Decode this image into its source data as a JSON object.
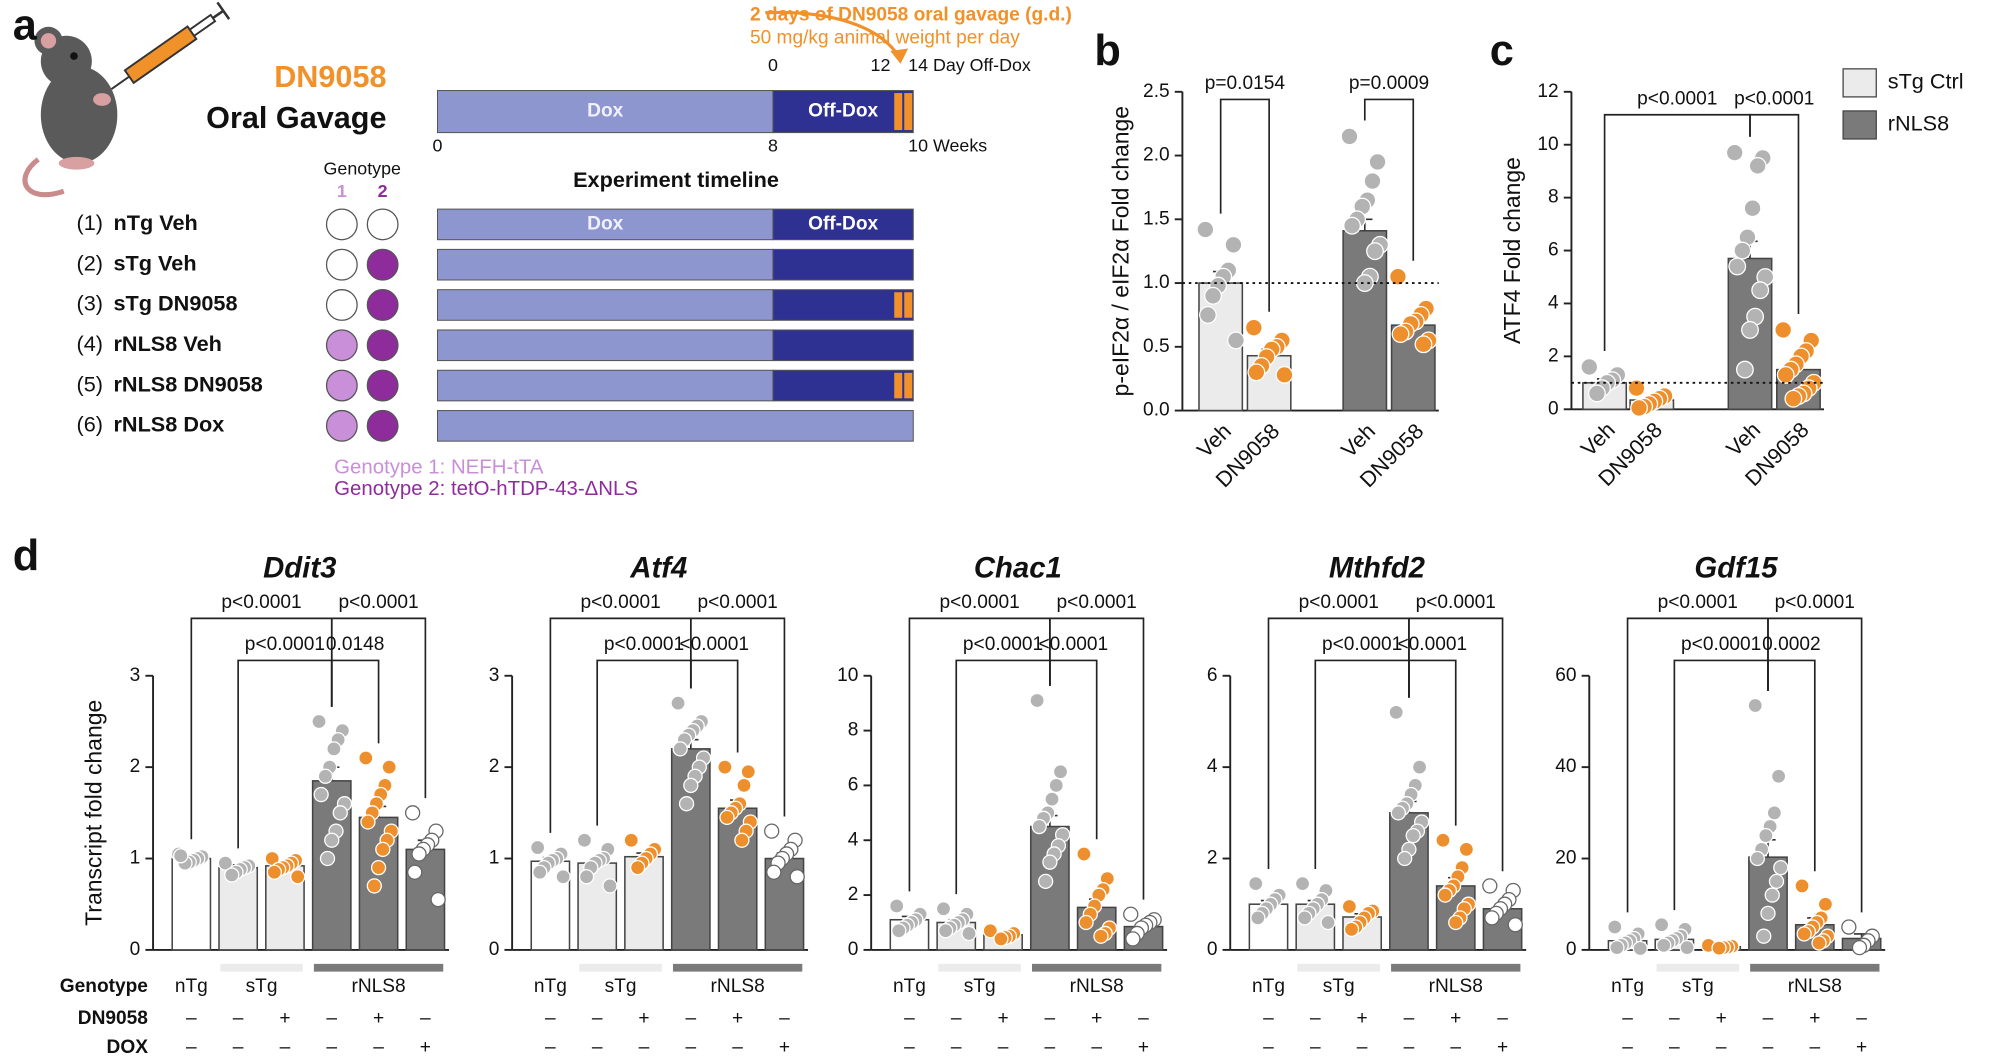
{
  "panel_labels": [
    "a",
    "b",
    "c",
    "d"
  ],
  "gavage": {
    "title": "2 days of DN9058 oral gavage (g.d.)",
    "subtitle": "50 mg/kg animal weight per day",
    "drug": "DN9058",
    "route": "Oral Gavage"
  },
  "timeline": {
    "title": "Experiment timeline",
    "labels": [
      "Dox",
      "Off-Dox"
    ],
    "week_ticks": [
      0,
      8,
      {
        "value": 10,
        "label": "10 Weeks"
      }
    ],
    "day_ticks": [
      0,
      12,
      {
        "value": 14,
        "label": "14 Day Off-Dox"
      }
    ]
  },
  "genotype": {
    "header": "Genotype",
    "columns": [
      1,
      2
    ],
    "colors": [
      "#c98fd8",
      "#8e2c9c"
    ],
    "legend": [
      "Genotype 1: NEFH-tTA",
      "Genotype 2: tetO-hTDP-43-ΔNLS"
    ]
  },
  "groups": [
    {
      "number": "(1)",
      "name": "nTg Veh",
      "genotype": [
        false,
        false
      ],
      "off_dox": true,
      "gavage": false,
      "labels": [
        "Dox",
        "Off-Dox"
      ]
    },
    {
      "number": "(2)",
      "name": "sTg Veh",
      "genotype": [
        false,
        true
      ],
      "off_dox": true,
      "gavage": false
    },
    {
      "number": "(3)",
      "name": "sTg DN9058",
      "genotype": [
        false,
        true
      ],
      "off_dox": true,
      "gavage": true
    },
    {
      "number": "(4)",
      "name": "rNLS8 Veh",
      "genotype": [
        true,
        true
      ],
      "off_dox": true,
      "gavage": false
    },
    {
      "number": "(5)",
      "name": "rNLS8 DN9058",
      "genotype": [
        true,
        true
      ],
      "off_dox": true,
      "gavage": true
    },
    {
      "number": "(6)",
      "name": "rNLS8 Dox",
      "genotype": [
        true,
        true
      ],
      "off_dox": false,
      "gavage": false
    }
  ],
  "chart_data": [
    {
      "type": "bar",
      "ylabel": "p-eIF2α / eIF2α Fold change",
      "categories": [
        "Veh",
        "DN9058",
        "Veh",
        "DN9058"
      ],
      "values": [
        1.0,
        0.43,
        1.41,
        0.67
      ],
      "errors": [
        0.09,
        0.05,
        0.09,
        0.04
      ],
      "colors": [
        "#ebebeb",
        "#ebebeb",
        "#7a7a7a",
        "#7a7a7a"
      ],
      "point_colors": [
        "#b3b3b3",
        "#ee8f2e",
        "#b3b3b3",
        "#ee8f2e"
      ],
      "points": [
        [
          1.42,
          1.3,
          1.1,
          1.05,
          0.98,
          0.9,
          0.75,
          0.55
        ],
        [
          0.65,
          0.55,
          0.5,
          0.48,
          0.42,
          0.35,
          0.3,
          0.28
        ],
        [
          2.15,
          1.95,
          1.8,
          1.65,
          1.6,
          1.5,
          1.45,
          1.3,
          1.25,
          1.05,
          1.0
        ],
        [
          1.05,
          0.8,
          0.75,
          0.7,
          0.68,
          0.62,
          0.6,
          0.55,
          0.52
        ]
      ],
      "ylim": [
        0,
        2.5
      ],
      "yticks": [
        {
          "value": 0,
          "label": "0.0"
        },
        0.5,
        {
          "value": 1,
          "label": "1.0"
        },
        1.5,
        {
          "value": 2,
          "label": "2.0"
        },
        2.5
      ],
      "reference_line": 1,
      "comparisons": [
        {
          "from": 0,
          "to": 1,
          "label": "p=0.0154"
        },
        {
          "from": 2,
          "to": 3,
          "label": "p=0.0009"
        }
      ]
    },
    {
      "type": "bar",
      "ylabel": "ATF4 Fold change",
      "categories": [
        "Veh",
        "DN9058",
        "Veh",
        "DN9058"
      ],
      "values": [
        1.0,
        0.35,
        5.7,
        1.5
      ],
      "errors": [
        0.15,
        0.1,
        0.65,
        0.25
      ],
      "colors": [
        "#ebebeb",
        "#ebebeb",
        "#7a7a7a",
        "#7a7a7a"
      ],
      "point_colors": [
        "#b3b3b3",
        "#ee8f2e",
        "#b3b3b3",
        "#ee8f2e"
      ],
      "points": [
        [
          1.6,
          1.3,
          1.1,
          1.0,
          0.8,
          0.6
        ],
        [
          0.8,
          0.5,
          0.4,
          0.3,
          0.2,
          0.1,
          0.05
        ],
        [
          9.7,
          9.5,
          9.2,
          7.6,
          6.5,
          6.0,
          5.4,
          5.0,
          4.5,
          3.5,
          3.0,
          1.5
        ],
        [
          3.0,
          2.6,
          2.2,
          2.0,
          1.7,
          1.5,
          1.3,
          1.0,
          0.8,
          0.6,
          0.5,
          0.4
        ]
      ],
      "ylim": [
        0,
        12
      ],
      "yticks": [
        0,
        2,
        4,
        6,
        8,
        10,
        12
      ],
      "reference_line": 1,
      "legend": [
        {
          "name": "sTg Ctrl",
          "color": "#ebebeb"
        },
        {
          "name": "rNLS8",
          "color": "#7a7a7a"
        }
      ],
      "comparisons": [
        {
          "from": 0,
          "to": 2,
          "label": "p<0.0001"
        },
        {
          "from": 2,
          "to": 3,
          "label": "p<0.0001"
        }
      ]
    },
    {
      "type": "bar",
      "title": "Ddit3",
      "ylabel": "Transcript fold change",
      "values": [
        1.0,
        0.9,
        0.92,
        1.85,
        1.45,
        1.1
      ],
      "errors": [
        0.02,
        0.03,
        0.03,
        0.15,
        0.12,
        0.1
      ],
      "colors": [
        "#ffffff",
        "#ebebeb",
        "#ebebeb",
        "#7a7a7a",
        "#7a7a7a",
        "#7a7a7a"
      ],
      "point_colors": [
        "#b3b3b3",
        "#b3b3b3",
        "#ee8f2e",
        "#b3b3b3",
        "#ee8f2e",
        "#ffffff"
      ],
      "points": [
        [
          1.05,
          1.02,
          1.0,
          0.98,
          0.96,
          0.95,
          1.03
        ],
        [
          0.95,
          0.92,
          0.9,
          0.88,
          0.85,
          0.82
        ],
        [
          1.0,
          0.98,
          0.95,
          0.92,
          0.9,
          0.88,
          0.85,
          0.8
        ],
        [
          2.5,
          2.4,
          2.3,
          2.2,
          2.0,
          1.9,
          1.7,
          1.6,
          1.5,
          1.3,
          1.2,
          1.0
        ],
        [
          2.1,
          2.0,
          1.8,
          1.7,
          1.6,
          1.5,
          1.4,
          1.3,
          1.2,
          1.1,
          0.9,
          0.7
        ],
        [
          1.5,
          1.3,
          1.2,
          1.15,
          1.1,
          1.05,
          0.85,
          0.55
        ]
      ],
      "ylim": [
        0,
        3
      ],
      "yticks": [
        0,
        1,
        2,
        3
      ],
      "comparisons": [
        {
          "from": 0,
          "to": 3,
          "label": "p<0.0001"
        },
        {
          "from": 3,
          "to": 5,
          "label": "p<0.0001"
        },
        {
          "from": 1,
          "to": 3,
          "label": "p<0.0001"
        },
        {
          "from": 3,
          "to": 4,
          "label": "0.0148"
        }
      ]
    },
    {
      "type": "bar",
      "title": "Atf4",
      "values": [
        0.97,
        0.95,
        1.02,
        2.2,
        1.55,
        1.0
      ],
      "errors": [
        0.04,
        0.05,
        0.04,
        0.1,
        0.09,
        0.06
      ],
      "colors": [
        "#ffffff",
        "#ebebeb",
        "#ebebeb",
        "#7a7a7a",
        "#7a7a7a",
        "#7a7a7a"
      ],
      "point_colors": [
        "#b3b3b3",
        "#b3b3b3",
        "#ee8f2e",
        "#b3b3b3",
        "#ee8f2e",
        "#ffffff"
      ],
      "points": [
        [
          1.12,
          1.05,
          1.0,
          0.98,
          0.95,
          0.9,
          0.85,
          0.8
        ],
        [
          1.2,
          1.1,
          1.0,
          0.98,
          0.95,
          0.9,
          0.8,
          0.7
        ],
        [
          1.2,
          1.1,
          1.05,
          1.0,
          0.95,
          0.9
        ],
        [
          2.7,
          2.5,
          2.45,
          2.4,
          2.35,
          2.3,
          2.2,
          2.1,
          2.0,
          1.9,
          1.8,
          1.6
        ],
        [
          2.0,
          1.95,
          1.8,
          1.6,
          1.55,
          1.5,
          1.45,
          1.4,
          1.3,
          1.2
        ],
        [
          1.3,
          1.2,
          1.1,
          1.05,
          1.0,
          0.95,
          0.85,
          0.8
        ]
      ],
      "ylim": [
        0,
        3
      ],
      "yticks": [
        0,
        1,
        2,
        3
      ],
      "comparisons": [
        {
          "from": 0,
          "to": 3,
          "label": "p<0.0001"
        },
        {
          "from": 3,
          "to": 5,
          "label": "p<0.0001"
        },
        {
          "from": 1,
          "to": 3,
          "label": "p<0.0001"
        },
        {
          "from": 3,
          "to": 4,
          "label": "<0.0001"
        }
      ]
    },
    {
      "type": "bar",
      "title": "Chac1",
      "values": [
        1.1,
        1.0,
        0.55,
        4.5,
        1.55,
        0.85
      ],
      "errors": [
        0.12,
        0.1,
        0.05,
        0.4,
        0.3,
        0.12
      ],
      "colors": [
        "#ffffff",
        "#ebebeb",
        "#ebebeb",
        "#7a7a7a",
        "#7a7a7a",
        "#7a7a7a"
      ],
      "point_colors": [
        "#b3b3b3",
        "#b3b3b3",
        "#ee8f2e",
        "#b3b3b3",
        "#ee8f2e",
        "#ffffff"
      ],
      "points": [
        [
          1.6,
          1.3,
          1.1,
          1.0,
          0.9,
          0.8,
          0.7
        ],
        [
          1.5,
          1.3,
          1.1,
          1.0,
          0.9,
          0.8,
          0.7,
          0.6
        ],
        [
          0.7,
          0.6,
          0.5,
          0.45,
          0.4
        ],
        [
          9.1,
          6.5,
          6.0,
          5.5,
          5.0,
          4.8,
          4.5,
          4.2,
          3.8,
          3.5,
          3.2,
          2.5
        ],
        [
          3.5,
          2.6,
          2.2,
          2.0,
          1.6,
          1.3,
          1.0,
          0.8,
          0.6,
          0.5
        ],
        [
          1.3,
          1.1,
          1.0,
          0.9,
          0.8,
          0.6,
          0.4
        ]
      ],
      "ylim": [
        0,
        10
      ],
      "yticks": [
        0,
        2,
        4,
        6,
        8,
        10
      ],
      "comparisons": [
        {
          "from": 0,
          "to": 3,
          "label": "p<0.0001"
        },
        {
          "from": 3,
          "to": 5,
          "label": "p<0.0001"
        },
        {
          "from": 1,
          "to": 3,
          "label": "p<0.0001"
        },
        {
          "from": 3,
          "to": 4,
          "label": "<0.0001"
        }
      ]
    },
    {
      "type": "bar",
      "title": "Mthfd2",
      "values": [
        1.0,
        1.0,
        0.72,
        3.0,
        1.4,
        0.9
      ],
      "errors": [
        0.08,
        0.08,
        0.07,
        0.25,
        0.18,
        0.1
      ],
      "colors": [
        "#ffffff",
        "#ebebeb",
        "#ebebeb",
        "#7a7a7a",
        "#7a7a7a",
        "#7a7a7a"
      ],
      "point_colors": [
        "#b3b3b3",
        "#b3b3b3",
        "#ee8f2e",
        "#b3b3b3",
        "#ee8f2e",
        "#ffffff"
      ],
      "points": [
        [
          1.45,
          1.2,
          1.1,
          1.0,
          0.9,
          0.8,
          0.7
        ],
        [
          1.45,
          1.3,
          1.1,
          1.0,
          0.9,
          0.8,
          0.7,
          0.6
        ],
        [
          0.95,
          0.85,
          0.8,
          0.7,
          0.6,
          0.5,
          0.45
        ],
        [
          5.2,
          4.0,
          3.6,
          3.4,
          3.2,
          3.1,
          3.0,
          2.8,
          2.6,
          2.5,
          2.2,
          2.0
        ],
        [
          2.4,
          2.2,
          1.8,
          1.6,
          1.4,
          1.3,
          1.2,
          1.0,
          0.9,
          0.7,
          0.6
        ],
        [
          1.4,
          1.3,
          1.1,
          1.0,
          0.9,
          0.8,
          0.7,
          0.55
        ]
      ],
      "ylim": [
        0,
        6
      ],
      "yticks": [
        0,
        2,
        4,
        6
      ],
      "comparisons": [
        {
          "from": 0,
          "to": 3,
          "label": "p<0.0001"
        },
        {
          "from": 3,
          "to": 5,
          "label": "p<0.0001"
        },
        {
          "from": 1,
          "to": 3,
          "label": "p<0.0001"
        },
        {
          "from": 3,
          "to": 4,
          "label": "<0.0001"
        }
      ]
    },
    {
      "type": "bar",
      "title": "Gdf15",
      "values": [
        2.0,
        2.3,
        0.7,
        20.3,
        5.5,
        2.5
      ],
      "errors": [
        0.6,
        0.7,
        0.1,
        3.8,
        1.5,
        1.0
      ],
      "colors": [
        "#ffffff",
        "#ebebeb",
        "#ebebeb",
        "#7a7a7a",
        "#7a7a7a",
        "#7a7a7a"
      ],
      "point_colors": [
        "#b3b3b3",
        "#b3b3b3",
        "#ee8f2e",
        "#b3b3b3",
        "#ee8f2e",
        "#ffffff"
      ],
      "points": [
        [
          5,
          3.5,
          2.5,
          2,
          1.5,
          1,
          0.5,
          0.3
        ],
        [
          5.5,
          4.5,
          3,
          2.5,
          2,
          1.5,
          1,
          0.5
        ],
        [
          1.0,
          0.8,
          0.6,
          0.5,
          0.4
        ],
        [
          53.5,
          38,
          30,
          27,
          25,
          22,
          20,
          18,
          15,
          12,
          8,
          3
        ],
        [
          14,
          10,
          7,
          6,
          5,
          4,
          3.5,
          3,
          2,
          1.5
        ],
        [
          5,
          3,
          2,
          1,
          0.5
        ]
      ],
      "ylim": [
        0,
        60
      ],
      "yticks": [
        0,
        20,
        40,
        60
      ],
      "comparisons": [
        {
          "from": 0,
          "to": 3,
          "label": "p<0.0001"
        },
        {
          "from": 3,
          "to": 5,
          "label": "p<0.0001"
        },
        {
          "from": 1,
          "to": 3,
          "label": "p<0.0001"
        },
        {
          "from": 3,
          "to": 4,
          "label": "0.0002"
        }
      ]
    }
  ],
  "d_table": {
    "row_labels": [
      "Genotype",
      "DN9058",
      "DOX"
    ],
    "genotype": [
      "nTg",
      "sTg",
      "sTg",
      "rNLS8",
      "rNLS8",
      "rNLS8"
    ],
    "DN9058": [
      "–",
      "–",
      "+",
      "–",
      "+",
      "–"
    ],
    "DOX": [
      "–",
      "–",
      "–",
      "–",
      "–",
      "+"
    ]
  }
}
